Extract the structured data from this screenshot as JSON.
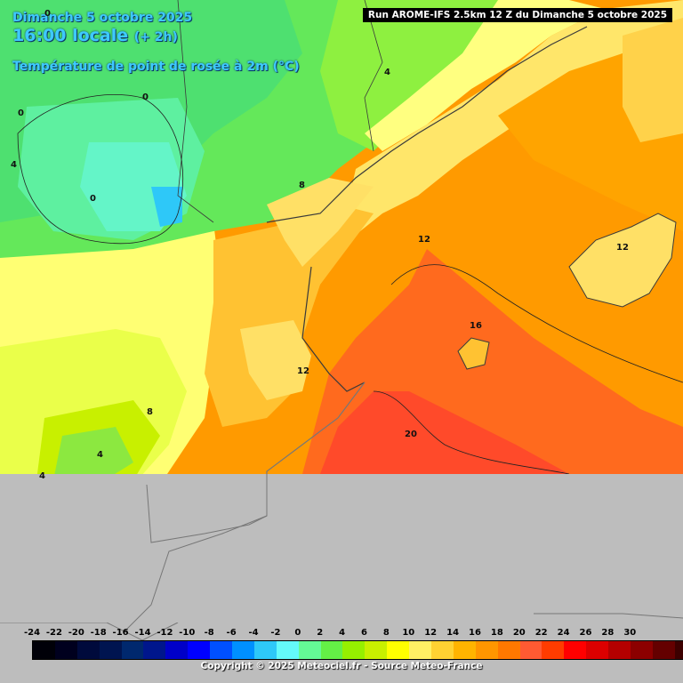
{
  "title": {
    "date": "Dimanche 5 octobre 2025",
    "time": "16:00 locale",
    "offset": "(+ 2h)",
    "variable": "Température de point de rosée à 2m (°C)"
  },
  "run_info": "Run AROME-IFS 2.5km 12 Z du Dimanche 5 octobre 2025",
  "isolines": [
    "0",
    "0",
    "0",
    "0",
    "4",
    "4",
    "8",
    "8",
    "12",
    "12",
    "12",
    "16",
    "20",
    "4",
    "4"
  ],
  "legend": {
    "labels": [
      "-24",
      "-22",
      "-20",
      "-18",
      "-16",
      "-14",
      "-12",
      "-10",
      "-8",
      "-6",
      "-4",
      "-2",
      "0",
      "2",
      "4",
      "6",
      "8",
      "10",
      "12",
      "14",
      "16",
      "18",
      "20",
      "22",
      "24",
      "26",
      "28",
      "30"
    ],
    "colors": [
      "#000008",
      "#00001e",
      "#000a3c",
      "#001450",
      "#00286e",
      "#00168c",
      "#0000c8",
      "#0000ff",
      "#0050ff",
      "#0090ff",
      "#2ec8f8",
      "#64fafa",
      "#64fa96",
      "#64f046",
      "#96f000",
      "#c8f000",
      "#ffff00",
      "#fff064",
      "#ffd232",
      "#ffb400",
      "#ff9600",
      "#ff7800",
      "#ff5a32",
      "#ff3c00",
      "#ff0000",
      "#dc0000",
      "#b40000",
      "#8c0000",
      "#640000",
      "#3c0000"
    ]
  },
  "copyright": "Copyright © 2025 Meteociel.fr - Source Meteo-France",
  "colors": {
    "title": "#3ec9ff",
    "no_data": "#bdbdbd",
    "coast": "#3a3a3a"
  },
  "icons": [
    "map-graphic"
  ]
}
